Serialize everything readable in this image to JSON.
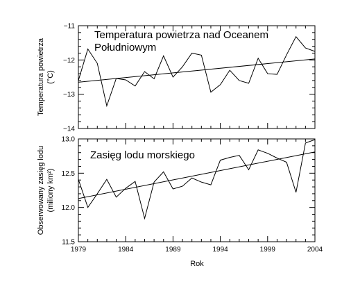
{
  "chart_data": [
    {
      "type": "line",
      "title_lines": [
        "Temperatura powietrza nad Oceanem",
        "Południowym"
      ],
      "ylabel_lines": [
        "Temperatura powietrza",
        "(°C)"
      ],
      "xlabel": "",
      "xlim": [
        1979,
        2004
      ],
      "ylim": [
        -14,
        -11
      ],
      "yticks": [
        -14,
        -13,
        -12,
        -11
      ],
      "ytick_labels": [
        "−14",
        "−13",
        "−12",
        "−11"
      ],
      "grid": false,
      "x": [
        1979,
        1980,
        1981,
        1982,
        1983,
        1984,
        1985,
        1986,
        1987,
        1988,
        1989,
        1990,
        1991,
        1992,
        1993,
        1994,
        1995,
        1996,
        1997,
        1998,
        1999,
        2000,
        2001,
        2002,
        2003,
        2004
      ],
      "series": [
        {
          "values": [
            -12.6,
            -11.68,
            -12.1,
            -13.34,
            -12.54,
            -12.58,
            -12.76,
            -12.34,
            -12.55,
            -11.88,
            -12.5,
            -12.2,
            -11.8,
            -11.86,
            -12.94,
            -12.72,
            -12.3,
            -12.6,
            -12.68,
            -11.95,
            -12.4,
            -12.42,
            -11.85,
            -11.32,
            -11.65,
            -11.75
          ]
        }
      ],
      "trend": {
        "x": [
          1979,
          2004
        ],
        "y": [
          -12.65,
          -11.97
        ]
      }
    },
    {
      "type": "line",
      "title_lines": [
        "Zasięg lodu morskiego"
      ],
      "ylabel_lines": [
        "Obserwowany zasięg lodu",
        "(miliony km²)"
      ],
      "xlabel": "Rok",
      "xlim": [
        1979,
        2004
      ],
      "ylim": [
        11.5,
        13.0
      ],
      "yticks": [
        11.5,
        12.0,
        12.5,
        13.0
      ],
      "ytick_labels": [
        "11.5",
        "12.0",
        "12.5",
        "13.0"
      ],
      "xticks": [
        1979,
        1984,
        1989,
        1994,
        1999,
        2004
      ],
      "xtick_labels": [
        "1979",
        "1984",
        "1989",
        "1994",
        "1999",
        "2004"
      ],
      "grid": false,
      "x": [
        1979,
        1980,
        1981,
        1982,
        1983,
        1984,
        1985,
        1986,
        1987,
        1988,
        1989,
        1990,
        1991,
        1992,
        1993,
        1994,
        1995,
        1996,
        1997,
        1998,
        1999,
        2000,
        2001,
        2002,
        2003,
        2004
      ],
      "series": [
        {
          "values": [
            12.41,
            12.0,
            12.2,
            12.41,
            12.15,
            12.28,
            12.38,
            11.84,
            12.37,
            12.52,
            12.27,
            12.31,
            12.43,
            12.37,
            12.33,
            12.69,
            12.73,
            12.76,
            12.55,
            12.84,
            12.79,
            12.72,
            12.66,
            12.22,
            12.94,
            12.99
          ]
        }
      ],
      "trend": {
        "x": [
          1979,
          2004
        ],
        "y": [
          12.13,
          12.81
        ]
      }
    }
  ]
}
